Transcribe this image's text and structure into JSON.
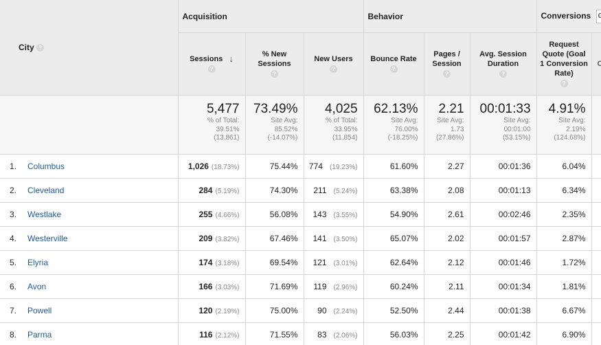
{
  "groups": {
    "acquisition": "Acquisition",
    "behavior": "Behavior",
    "conversions": "Conversions",
    "goal_select_partial": "G"
  },
  "columns": {
    "city": "City",
    "sessions": "Sessions",
    "new_sessions": "% New Sessions",
    "new_users": "New Users",
    "bounce_rate": "Bounce Rate",
    "pages_session": "Pages / Session",
    "avg_duration": "Avg. Session Duration",
    "goal_conv": "Request Quote (Goal 1 Conversion Rate)",
    "next_partial": "C C"
  },
  "totals": {
    "sessions": {
      "value": "5,477",
      "line1": "% of Total:",
      "line2": "39.51%",
      "line3": "(13,861)"
    },
    "new_sessions": {
      "value": "73.49%",
      "line1": "Site Avg:",
      "line2": "85.52%",
      "line3": "(-14.07%)"
    },
    "new_users": {
      "value": "4,025",
      "line1": "% of Total:",
      "line2": "33.95%",
      "line3": "(11,854)"
    },
    "bounce_rate": {
      "value": "62.13%",
      "line1": "Site Avg:",
      "line2": "76.00%",
      "line3": "(-18.25%)"
    },
    "pages_session": {
      "value": "2.21",
      "line1": "Site Avg:",
      "line2": "1.73",
      "line3": "(27.86%)"
    },
    "avg_duration": {
      "value": "00:01:33",
      "line1": "Site Avg:",
      "line2": "00:01:00",
      "line3": "(53.15%)"
    },
    "goal_conv": {
      "value": "4.91%",
      "line1": "Site Avg:",
      "line2": "2.19%",
      "line3": "(124.68%)"
    }
  },
  "rows": [
    {
      "idx": "1.",
      "city": "Columbus",
      "sessions": "1,026",
      "sessions_pct": "(18.73%)",
      "new_sessions": "75.44%",
      "new_users": "774",
      "new_users_pct": "(19.23%)",
      "bounce": "61.60%",
      "pages": "2.27",
      "duration": "00:01:36",
      "conv": "6.04%"
    },
    {
      "idx": "2.",
      "city": "Cleveland",
      "sessions": "284",
      "sessions_pct": "(5.19%)",
      "new_sessions": "74.30%",
      "new_users": "211",
      "new_users_pct": "(5.24%)",
      "bounce": "63.38%",
      "pages": "2.08",
      "duration": "00:01:13",
      "conv": "6.34%"
    },
    {
      "idx": "3.",
      "city": "Westlake",
      "sessions": "255",
      "sessions_pct": "(4.66%)",
      "new_sessions": "56.08%",
      "new_users": "143",
      "new_users_pct": "(3.55%)",
      "bounce": "54.90%",
      "pages": "2.61",
      "duration": "00:02:46",
      "conv": "2.35%"
    },
    {
      "idx": "4.",
      "city": "Westerville",
      "sessions": "209",
      "sessions_pct": "(3.82%)",
      "new_sessions": "67.46%",
      "new_users": "141",
      "new_users_pct": "(3.50%)",
      "bounce": "65.07%",
      "pages": "2.02",
      "duration": "00:01:57",
      "conv": "2.87%"
    },
    {
      "idx": "5.",
      "city": "Elyria",
      "sessions": "174",
      "sessions_pct": "(3.18%)",
      "new_sessions": "69.54%",
      "new_users": "121",
      "new_users_pct": "(3.01%)",
      "bounce": "62.64%",
      "pages": "2.12",
      "duration": "00:01:46",
      "conv": "1.72%"
    },
    {
      "idx": "6.",
      "city": "Avon",
      "sessions": "166",
      "sessions_pct": "(3.03%)",
      "new_sessions": "71.69%",
      "new_users": "119",
      "new_users_pct": "(2.96%)",
      "bounce": "60.24%",
      "pages": "2.11",
      "duration": "00:01:34",
      "conv": "1.81%"
    },
    {
      "idx": "7.",
      "city": "Powell",
      "sessions": "120",
      "sessions_pct": "(2.19%)",
      "new_sessions": "75.00%",
      "new_users": "90",
      "new_users_pct": "(2.24%)",
      "bounce": "52.50%",
      "pages": "2.44",
      "duration": "00:01:38",
      "conv": "6.67%"
    },
    {
      "idx": "8.",
      "city": "Parma",
      "sessions": "116",
      "sessions_pct": "(2.12%)",
      "new_sessions": "71.55%",
      "new_users": "83",
      "new_users_pct": "(2.06%)",
      "bounce": "56.03%",
      "pages": "2.25",
      "duration": "00:01:42",
      "conv": "6.90%"
    }
  ]
}
